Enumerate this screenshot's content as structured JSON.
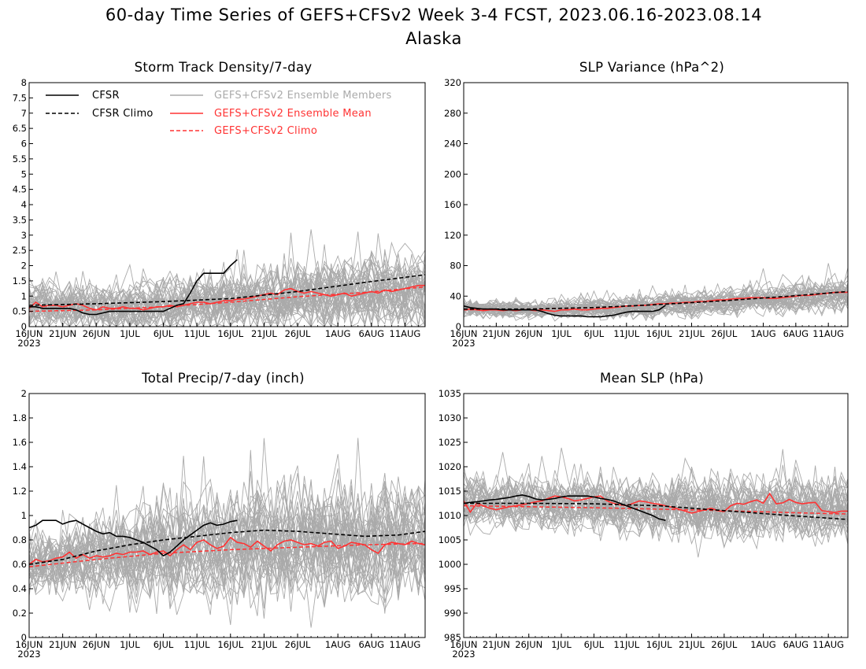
{
  "figure": {
    "title_line1": "60-day Time Series of GEFS+CFSv2 Week 3-4 FCST, 2023.06.16-2023.08.14",
    "title_line2": "Alaska"
  },
  "colors": {
    "observed": "#000000",
    "ensemble_members": "#aaaaaa",
    "ensemble_mean": "#ff3333",
    "model_climo": "#ff3333"
  },
  "legend": {
    "placement": "top-left of first panel",
    "items": [
      {
        "label": "CFSR",
        "style": "solid-black"
      },
      {
        "label": "CFSR Climo",
        "style": "dashed-black"
      },
      {
        "label": "GEFS+CFSv2 Ensemble Members",
        "style": "solid-gray"
      },
      {
        "label": "GEFS+CFSv2 Ensemble Mean",
        "style": "solid-red"
      },
      {
        "label": "GEFS+CFSv2 Climo",
        "style": "dashed-red"
      }
    ]
  },
  "x_axis": {
    "tick_labels": [
      "16JUN",
      "21JUN",
      "26JUN",
      "1JUL",
      "6JUL",
      "11JUL",
      "16JUL",
      "21JUL",
      "26JUL",
      "1AUG",
      "6AUG",
      "11AUG"
    ],
    "year_label": "2023"
  },
  "chart_data": [
    {
      "type": "line",
      "title": "Storm Track Density/7-day",
      "ylim": [
        0,
        8
      ],
      "yticks": [
        0,
        0.5,
        1,
        1.5,
        2,
        2.5,
        3,
        3.5,
        4,
        4.5,
        5,
        5.5,
        6,
        6.5,
        7,
        7.5,
        8
      ],
      "ytick_labels": [
        "0",
        "0.5",
        "1",
        "1.5",
        "2",
        "2.5",
        "3",
        "3.5",
        "4",
        "4.5",
        "5",
        "5.5",
        "6",
        "6.5",
        "7",
        "7.5",
        "8"
      ],
      "members": {
        "count": 40,
        "center": [
          0.7,
          0.65,
          0.62,
          0.63,
          0.68,
          0.72,
          0.78,
          0.85,
          0.95,
          1.05,
          1.1,
          1.15,
          1.25
        ],
        "spread": [
          0.6,
          0.6,
          0.6,
          0.62,
          0.65,
          0.7,
          0.75,
          0.8,
          0.85,
          0.9,
          0.9,
          0.92,
          0.95
        ]
      },
      "cfsr": {
        "x": [
          0,
          1,
          2,
          3,
          4,
          5,
          6,
          7,
          8,
          9,
          10,
          11,
          12,
          13,
          14,
          15,
          16,
          17,
          18,
          19,
          20,
          21,
          22,
          23,
          24,
          25,
          26,
          27,
          28,
          29,
          30,
          31
        ],
        "y": [
          0.65,
          0.65,
          0.6,
          0.6,
          0.6,
          0.6,
          0.6,
          0.55,
          0.45,
          0.4,
          0.4,
          0.45,
          0.5,
          0.5,
          0.5,
          0.5,
          0.5,
          0.5,
          0.5,
          0.5,
          0.5,
          0.6,
          0.7,
          0.75,
          1.1,
          1.5,
          1.75,
          1.75,
          1.75,
          1.75,
          2.0,
          2.2
        ]
      },
      "cfsr_climo": {
        "x": [
          0,
          10,
          20,
          30,
          40,
          50,
          59
        ],
        "y": [
          0.7,
          0.75,
          0.82,
          0.92,
          1.15,
          1.45,
          1.7
        ]
      },
      "ens_mean": {
        "x": [
          0,
          1,
          2,
          3,
          4,
          5,
          6,
          7,
          8,
          9,
          10,
          11,
          12,
          13,
          14,
          15,
          16,
          17,
          18,
          19,
          20,
          21,
          22,
          23,
          24,
          25,
          26,
          27,
          28,
          29,
          30,
          31,
          32,
          33,
          34,
          35,
          36,
          37,
          38,
          39,
          40,
          41,
          42,
          43,
          44,
          45,
          46,
          47,
          48,
          49,
          50,
          51,
          52,
          53,
          54,
          55,
          56,
          57,
          58,
          59
        ],
        "y": [
          0.6,
          0.8,
          0.65,
          0.7,
          0.7,
          0.65,
          0.7,
          0.75,
          0.7,
          0.6,
          0.55,
          0.65,
          0.6,
          0.6,
          0.65,
          0.6,
          0.6,
          0.55,
          0.6,
          0.65,
          0.65,
          0.7,
          0.65,
          0.7,
          0.75,
          0.8,
          0.8,
          0.75,
          0.8,
          0.85,
          0.85,
          0.9,
          0.9,
          0.95,
          1.0,
          1.05,
          1.1,
          1.05,
          1.2,
          1.25,
          1.15,
          1.1,
          1.15,
          1.1,
          1.05,
          1.0,
          1.05,
          1.1,
          1.0,
          1.05,
          1.1,
          1.15,
          1.1,
          1.2,
          1.15,
          1.2,
          1.25,
          1.3,
          1.35,
          1.35
        ]
      },
      "model_climo": {
        "x": [
          0,
          10,
          20,
          30,
          40,
          50,
          59
        ],
        "y": [
          0.5,
          0.55,
          0.65,
          0.8,
          0.98,
          1.12,
          1.3
        ]
      }
    },
    {
      "type": "line",
      "title": "SLP Variance (hPa^2)",
      "ylim": [
        0,
        320
      ],
      "yticks": [
        0,
        40,
        80,
        120,
        160,
        200,
        240,
        280,
        320
      ],
      "ytick_labels": [
        "0",
        "40",
        "80",
        "120",
        "160",
        "200",
        "240",
        "280",
        "320"
      ],
      "members": {
        "count": 40,
        "center": [
          24,
          23,
          22,
          23,
          24,
          25,
          27,
          29,
          31,
          34,
          37,
          40,
          44
        ],
        "spread": [
          8,
          8,
          8,
          9,
          10,
          11,
          12,
          12,
          13,
          14,
          15,
          16,
          17
        ]
      },
      "cfsr": {
        "x": [
          0,
          1,
          2,
          3,
          4,
          5,
          6,
          7,
          8,
          9,
          10,
          11,
          12,
          13,
          14,
          15,
          16,
          17,
          18,
          19,
          20,
          21,
          22,
          23,
          24,
          25,
          26,
          27,
          28,
          29,
          30,
          31
        ],
        "y": [
          27,
          25,
          24,
          23,
          23,
          23,
          22,
          22,
          22,
          22,
          22,
          22,
          20,
          17,
          15,
          14,
          14,
          14,
          14,
          13,
          13,
          13,
          14,
          15,
          17,
          19,
          20,
          20,
          20,
          20,
          22,
          28
        ]
      },
      "cfsr_climo": {
        "x": [
          0,
          10,
          20,
          30,
          40,
          50,
          59
        ],
        "y": [
          23,
          23,
          25,
          29,
          34,
          40,
          46
        ]
      },
      "ens_mean": {
        "x": [
          0,
          1,
          2,
          3,
          4,
          5,
          6,
          7,
          8,
          9,
          10,
          11,
          12,
          13,
          14,
          15,
          16,
          17,
          18,
          19,
          20,
          21,
          22,
          23,
          24,
          25,
          26,
          27,
          28,
          29,
          30,
          31,
          32,
          33,
          34,
          35,
          36,
          37,
          38,
          39,
          40,
          41,
          42,
          43,
          44,
          45,
          46,
          47,
          48,
          49,
          50,
          51,
          52,
          53,
          54,
          55,
          56,
          57,
          58,
          59
        ],
        "y": [
          22,
          23,
          22,
          21,
          22,
          22,
          21,
          22,
          21,
          22,
          22,
          21,
          22,
          21,
          20,
          22,
          22,
          23,
          22,
          22,
          23,
          24,
          24,
          25,
          26,
          27,
          27,
          28,
          28,
          29,
          30,
          30,
          31,
          31,
          32,
          32,
          33,
          33,
          34,
          35,
          35,
          36,
          37,
          37,
          38,
          38,
          38,
          37,
          37,
          38,
          39,
          40,
          41,
          41,
          42,
          43,
          44,
          45,
          45,
          45
        ]
      },
      "model_climo": {
        "x": [
          0,
          10,
          20,
          30,
          40,
          50,
          59
        ],
        "y": [
          22,
          23,
          25,
          29,
          34,
          40,
          46
        ]
      }
    },
    {
      "type": "line",
      "title": "Total Precip/7-day (inch)",
      "ylim": [
        0,
        2
      ],
      "yticks": [
        0,
        0.2,
        0.4,
        0.6,
        0.8,
        1,
        1.2,
        1.4,
        1.6,
        1.8,
        2
      ],
      "ytick_labels": [
        "0",
        "0.2",
        "0.4",
        "0.6",
        "0.8",
        "1",
        "1.2",
        "1.4",
        "1.6",
        "1.8",
        "2"
      ],
      "members": {
        "count": 40,
        "center": [
          0.6,
          0.62,
          0.65,
          0.67,
          0.7,
          0.72,
          0.74,
          0.75,
          0.76,
          0.76,
          0.76,
          0.77,
          0.77
        ],
        "spread": [
          0.2,
          0.22,
          0.25,
          0.27,
          0.3,
          0.32,
          0.35,
          0.36,
          0.36,
          0.36,
          0.35,
          0.35,
          0.35
        ]
      },
      "cfsr": {
        "x": [
          0,
          1,
          2,
          3,
          4,
          5,
          6,
          7,
          8,
          9,
          10,
          11,
          12,
          13,
          14,
          15,
          16,
          17,
          18,
          19,
          20,
          21,
          22,
          23,
          24,
          25,
          26,
          27,
          28,
          29,
          30,
          31
        ],
        "y": [
          0.9,
          0.92,
          0.96,
          0.96,
          0.96,
          0.93,
          0.95,
          0.96,
          0.93,
          0.9,
          0.87,
          0.85,
          0.86,
          0.83,
          0.83,
          0.82,
          0.8,
          0.78,
          0.75,
          0.72,
          0.67,
          0.7,
          0.75,
          0.8,
          0.84,
          0.88,
          0.92,
          0.94,
          0.92,
          0.93,
          0.95,
          0.96
        ]
      },
      "cfsr_climo": {
        "x": [
          0,
          5,
          10,
          15,
          20,
          25,
          30,
          35,
          40,
          45,
          50,
          55,
          59
        ],
        "y": [
          0.6,
          0.64,
          0.71,
          0.76,
          0.8,
          0.83,
          0.86,
          0.88,
          0.87,
          0.85,
          0.83,
          0.84,
          0.87
        ]
      },
      "ens_mean": {
        "x": [
          0,
          1,
          2,
          3,
          4,
          5,
          6,
          7,
          8,
          9,
          10,
          11,
          12,
          13,
          14,
          15,
          16,
          17,
          18,
          19,
          20,
          21,
          22,
          23,
          24,
          25,
          26,
          27,
          28,
          29,
          30,
          31,
          32,
          33,
          34,
          35,
          36,
          37,
          38,
          39,
          40,
          41,
          42,
          43,
          44,
          45,
          46,
          47,
          48,
          49,
          50,
          51,
          52,
          53,
          54,
          55,
          56,
          57,
          58,
          59
        ],
        "y": [
          0.6,
          0.64,
          0.62,
          0.63,
          0.65,
          0.66,
          0.7,
          0.65,
          0.68,
          0.65,
          0.67,
          0.66,
          0.67,
          0.69,
          0.68,
          0.7,
          0.7,
          0.71,
          0.68,
          0.7,
          0.71,
          0.67,
          0.72,
          0.76,
          0.72,
          0.78,
          0.8,
          0.76,
          0.73,
          0.75,
          0.82,
          0.78,
          0.77,
          0.74,
          0.79,
          0.75,
          0.71,
          0.76,
          0.79,
          0.8,
          0.78,
          0.76,
          0.77,
          0.75,
          0.78,
          0.79,
          0.73,
          0.75,
          0.78,
          0.77,
          0.76,
          0.72,
          0.69,
          0.76,
          0.78,
          0.77,
          0.76,
          0.79,
          0.77,
          0.76
        ]
      },
      "model_climo": {
        "x": [
          0,
          10,
          20,
          30,
          40,
          50,
          59
        ],
        "y": [
          0.58,
          0.64,
          0.69,
          0.72,
          0.74,
          0.76,
          0.77
        ]
      }
    },
    {
      "type": "line",
      "title": "Mean SLP (hPa)",
      "ylim": [
        985,
        1035
      ],
      "yticks": [
        985,
        990,
        995,
        1000,
        1005,
        1010,
        1015,
        1020,
        1025,
        1030,
        1035
      ],
      "ytick_labels": [
        "985",
        "990",
        "995",
        "1000",
        "1005",
        "1010",
        "1015",
        "1020",
        "1025",
        "1030",
        "1035"
      ],
      "members": {
        "count": 40,
        "center": [
          1012.5,
          1012.3,
          1012.2,
          1012.1,
          1012.0,
          1011.8,
          1011.5,
          1011.3,
          1011.2,
          1011.2,
          1011.3,
          1011.3,
          1011.4
        ],
        "spread": [
          3.5,
          3.7,
          3.8,
          4.0,
          4.1,
          4.2,
          4.4,
          4.6,
          4.8,
          5.0,
          5.0,
          5.0,
          5.0
        ]
      },
      "cfsr": {
        "x": [
          0,
          1,
          2,
          3,
          4,
          5,
          6,
          7,
          8,
          9,
          10,
          11,
          12,
          13,
          14,
          15,
          16,
          17,
          18,
          19,
          20,
          21,
          22,
          23,
          24,
          25,
          26,
          27,
          28,
          29,
          30,
          31
        ],
        "y": [
          1012.5,
          1012.7,
          1012.8,
          1013.0,
          1013.2,
          1013.3,
          1013.5,
          1013.7,
          1014.0,
          1014.2,
          1013.9,
          1013.4,
          1013.2,
          1013.3,
          1013.5,
          1013.8,
          1014.0,
          1014.0,
          1014.0,
          1014.0,
          1013.8,
          1013.5,
          1013.3,
          1013.0,
          1012.5,
          1012.0,
          1011.5,
          1011.0,
          1010.5,
          1010.0,
          1009.3,
          1009.0
        ]
      },
      "cfsr_climo": {
        "x": [
          0,
          10,
          20,
          30,
          40,
          50,
          59
        ],
        "y": [
          1012.5,
          1012.5,
          1012.4,
          1012.0,
          1011.0,
          1010.0,
          1009.2
        ]
      },
      "ens_mean": {
        "x": [
          0,
          1,
          2,
          3,
          4,
          5,
          6,
          7,
          8,
          9,
          10,
          11,
          12,
          13,
          14,
          15,
          16,
          17,
          18,
          19,
          20,
          21,
          22,
          23,
          24,
          25,
          26,
          27,
          28,
          29,
          30,
          31,
          32,
          33,
          34,
          35,
          36,
          37,
          38,
          39,
          40,
          41,
          42,
          43,
          44,
          45,
          46,
          47,
          48,
          49,
          50,
          51,
          52,
          53,
          54,
          55,
          56,
          57,
          58,
          59
        ],
        "y": [
          1013.0,
          1010.7,
          1012.5,
          1012.0,
          1011.5,
          1011.2,
          1011.5,
          1011.8,
          1012.0,
          1012.2,
          1012.5,
          1012.8,
          1013.0,
          1013.5,
          1014.0,
          1013.8,
          1013.5,
          1013.0,
          1013.2,
          1013.5,
          1013.8,
          1014.0,
          1013.0,
          1012.5,
          1012.2,
          1012.0,
          1012.5,
          1013.0,
          1012.8,
          1012.5,
          1012.3,
          1012.0,
          1011.7,
          1011.3,
          1010.9,
          1010.5,
          1010.8,
          1011.2,
          1011.5,
          1011.0,
          1010.8,
          1012.0,
          1012.5,
          1012.3,
          1012.8,
          1013.2,
          1012.5,
          1014.5,
          1012.4,
          1012.6,
          1013.3,
          1012.7,
          1012.4,
          1012.6,
          1012.7,
          1011.0,
          1010.8,
          1010.6,
          1010.9,
          1010.9
        ]
      },
      "model_climo": {
        "x": [
          0,
          10,
          20,
          30,
          40,
          50,
          59
        ],
        "y": [
          1012.0,
          1011.8,
          1011.6,
          1011.3,
          1011.0,
          1010.6,
          1010.3
        ]
      }
    }
  ]
}
